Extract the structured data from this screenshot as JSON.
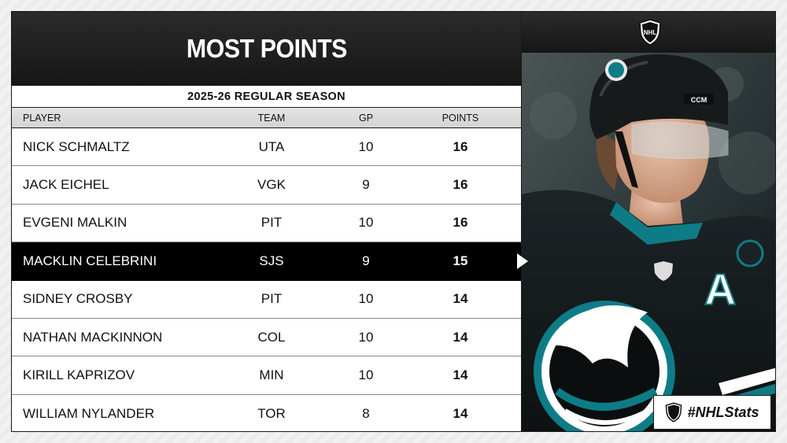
{
  "title": "MOST POINTS",
  "season": "2025-26 REGULAR SEASON",
  "columns": {
    "player": "PLAYER",
    "team": "TEAM",
    "gp": "GP",
    "points": "POINTS"
  },
  "rows": [
    {
      "player": "NICK SCHMALTZ",
      "team": "UTA",
      "gp": "10",
      "points": "16"
    },
    {
      "player": "JACK EICHEL",
      "team": "VGK",
      "gp": "9",
      "points": "16"
    },
    {
      "player": "EVGENI MALKIN",
      "team": "PIT",
      "gp": "10",
      "points": "16"
    },
    {
      "player": "MACKLIN CELEBRINI",
      "team": "SJS",
      "gp": "9",
      "points": "15"
    },
    {
      "player": "SIDNEY CROSBY",
      "team": "PIT",
      "gp": "10",
      "points": "14"
    },
    {
      "player": "NATHAN MACKINNON",
      "team": "COL",
      "gp": "10",
      "points": "14"
    },
    {
      "player": "KIRILL KAPRIZOV",
      "team": "MIN",
      "gp": "10",
      "points": "14"
    },
    {
      "player": "WILLIAM NYLANDER",
      "team": "TOR",
      "gp": "8",
      "points": "14"
    }
  ],
  "highlighted_row": 3,
  "hashtag": "#NHLStats",
  "logo_text": "NHL",
  "icons": {
    "logo": "nhl-shield-icon",
    "arrow": "triangle-right-icon"
  },
  "colors": {
    "dark": "#161616",
    "teal": "#0e7c86",
    "jersey": "#151b1d"
  }
}
